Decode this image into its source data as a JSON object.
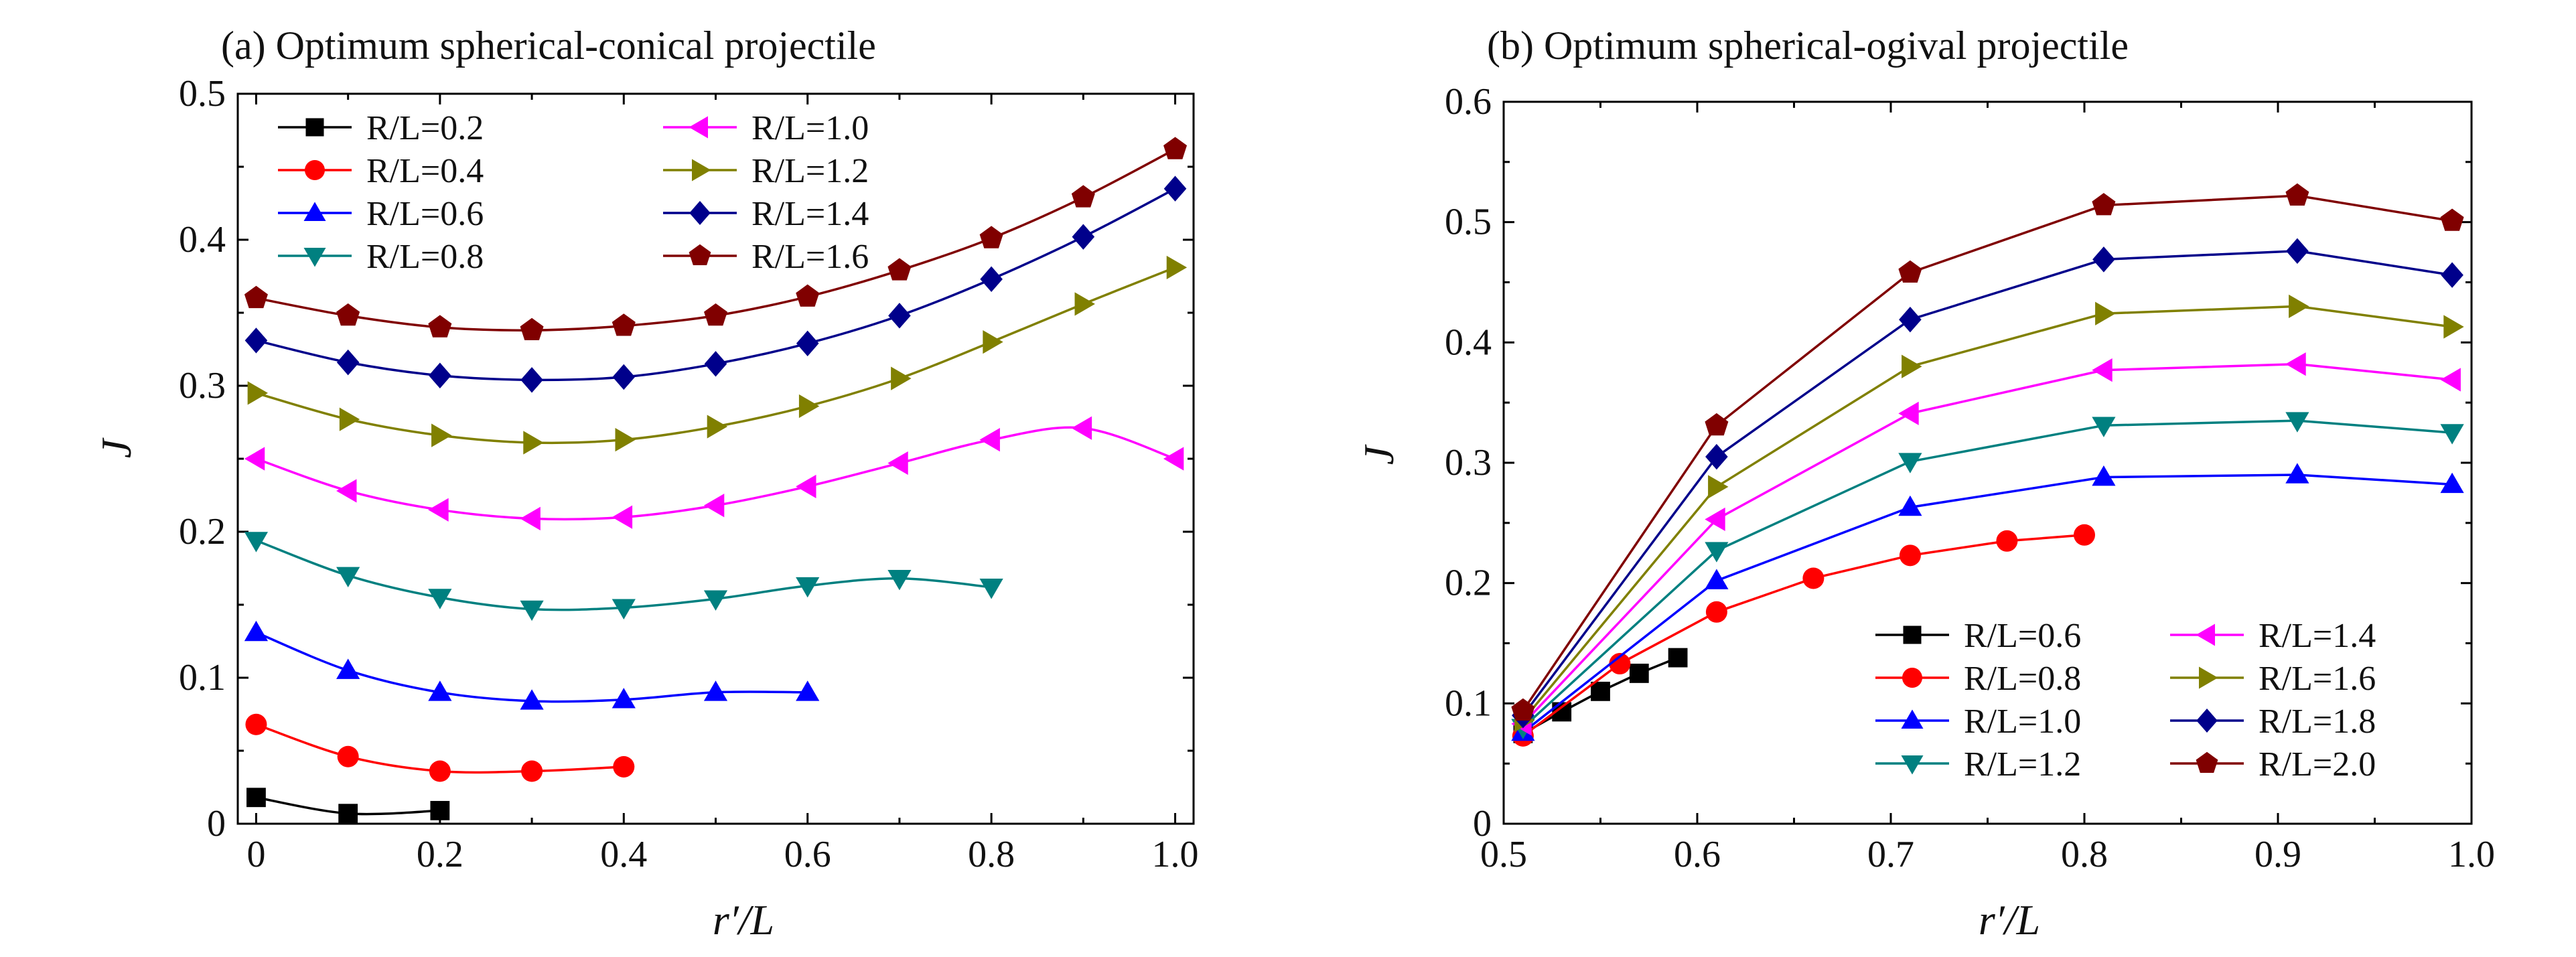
{
  "chart_data": [
    {
      "type": "line",
      "title": "(a) Optimum spherical-conical projectile",
      "xlabel": "r′/L",
      "ylabel": "J",
      "xlim": [
        -0.02,
        1.02
      ],
      "ylim": [
        0,
        0.5
      ],
      "xticks": [
        0,
        0.2,
        0.4,
        0.6,
        0.8,
        1.0
      ],
      "xtick_labels": [
        "0",
        "0.2",
        "0.4",
        "0.6",
        "0.8",
        "1.0"
      ],
      "yticks": [
        0,
        0.1,
        0.2,
        0.3,
        0.4,
        0.5
      ],
      "ytick_labels": [
        "0",
        "0.1",
        "0.2",
        "0.3",
        "0.4",
        "0.5"
      ],
      "grid": false,
      "smooth": true,
      "legend": {
        "position": "top-left",
        "columns": 2,
        "labels": [
          "R/L=0.2",
          "R/L=0.4",
          "R/L=0.6",
          "R/L=0.8",
          "R/L=1.0",
          "R/L=1.2",
          "R/L=1.4",
          "R/L=1.6"
        ]
      },
      "series": [
        {
          "name": "R/L=0.2",
          "color": "#000000",
          "marker": "square",
          "x": [
            0,
            0.1,
            0.2
          ],
          "y": [
            0.018,
            0.007,
            0.009
          ]
        },
        {
          "name": "R/L=0.4",
          "color": "#ff0000",
          "marker": "circle",
          "x": [
            0,
            0.1,
            0.2,
            0.3,
            0.4
          ],
          "y": [
            0.068,
            0.046,
            0.036,
            0.036,
            0.039
          ]
        },
        {
          "name": "R/L=0.6",
          "color": "#0000ff",
          "marker": "triangle-up",
          "x": [
            0,
            0.1,
            0.2,
            0.3,
            0.4,
            0.5,
            0.6
          ],
          "y": [
            0.131,
            0.105,
            0.09,
            0.084,
            0.085,
            0.09,
            0.09
          ]
        },
        {
          "name": "R/L=0.8",
          "color": "#008080",
          "marker": "triangle-down",
          "x": [
            0,
            0.1,
            0.2,
            0.3,
            0.4,
            0.5,
            0.6,
            0.7,
            0.8
          ],
          "y": [
            0.194,
            0.17,
            0.155,
            0.147,
            0.148,
            0.154,
            0.163,
            0.168,
            0.162
          ]
        },
        {
          "name": "R/L=1.0",
          "color": "#ff00ff",
          "marker": "triangle-left",
          "x": [
            0,
            0.1,
            0.2,
            0.3,
            0.4,
            0.5,
            0.6,
            0.7,
            0.8,
            0.9,
            1.0
          ],
          "y": [
            0.25,
            0.228,
            0.215,
            0.209,
            0.21,
            0.218,
            0.231,
            0.247,
            0.263,
            0.271,
            0.25
          ]
        },
        {
          "name": "R/L=1.2",
          "color": "#808000",
          "marker": "triangle-right",
          "x": [
            0,
            0.1,
            0.2,
            0.3,
            0.4,
            0.5,
            0.6,
            0.7,
            0.8,
            0.9,
            1.0
          ],
          "y": [
            0.295,
            0.277,
            0.266,
            0.261,
            0.263,
            0.272,
            0.286,
            0.305,
            0.33,
            0.356,
            0.381
          ]
        },
        {
          "name": "R/L=1.4",
          "color": "#00008b",
          "marker": "diamond",
          "x": [
            0,
            0.1,
            0.2,
            0.3,
            0.4,
            0.5,
            0.6,
            0.7,
            0.8,
            0.9,
            1.0
          ],
          "y": [
            0.331,
            0.316,
            0.307,
            0.304,
            0.306,
            0.315,
            0.329,
            0.348,
            0.373,
            0.402,
            0.435
          ]
        },
        {
          "name": "R/L=1.6",
          "color": "#800000",
          "marker": "pentagon",
          "x": [
            0,
            0.1,
            0.2,
            0.3,
            0.4,
            0.5,
            0.6,
            0.7,
            0.8,
            0.9,
            1.0
          ],
          "y": [
            0.36,
            0.348,
            0.34,
            0.338,
            0.341,
            0.348,
            0.361,
            0.379,
            0.401,
            0.429,
            0.462
          ]
        }
      ]
    },
    {
      "type": "line",
      "title": "(b) Optimum spherical-ogival projectile",
      "xlabel": "r′/L",
      "ylabel": "J",
      "xlim": [
        0.5,
        1.0
      ],
      "ylim": [
        0,
        0.6
      ],
      "xticks": [
        0.5,
        0.6,
        0.7,
        0.8,
        0.9,
        1.0
      ],
      "xtick_labels": [
        "0.5",
        "0.6",
        "0.7",
        "0.8",
        "0.9",
        "1.0"
      ],
      "yticks": [
        0,
        0.1,
        0.2,
        0.3,
        0.4,
        0.5,
        0.6
      ],
      "ytick_labels": [
        "0",
        "0.1",
        "0.2",
        "0.3",
        "0.4",
        "0.5",
        "0.6"
      ],
      "grid": false,
      "smooth": false,
      "legend": {
        "position": "bottom-right",
        "columns": 2,
        "labels": [
          "R/L=0.6",
          "R/L=0.8",
          "R/L=1.0",
          "R/L=1.2",
          "R/L=1.4",
          "R/L=1.6",
          "R/L=1.8",
          "R/L=2.0"
        ]
      },
      "series": [
        {
          "name": "R/L=0.6",
          "color": "#000000",
          "marker": "square",
          "x": [
            0.51,
            0.53,
            0.55,
            0.57,
            0.59
          ],
          "y": [
            0.075,
            0.093,
            0.11,
            0.125,
            0.138
          ]
        },
        {
          "name": "R/L=0.8",
          "color": "#ff0000",
          "marker": "circle",
          "x": [
            0.51,
            0.56,
            0.61,
            0.66,
            0.71,
            0.76,
            0.8
          ],
          "y": [
            0.073,
            0.133,
            0.176,
            0.204,
            0.223,
            0.235,
            0.24
          ]
        },
        {
          "name": "R/L=1.0",
          "color": "#0000ff",
          "marker": "triangle-up",
          "x": [
            0.51,
            0.61,
            0.71,
            0.81,
            0.91,
            0.99
          ],
          "y": [
            0.076,
            0.202,
            0.263,
            0.288,
            0.29,
            0.282
          ]
        },
        {
          "name": "R/L=1.2",
          "color": "#008080",
          "marker": "triangle-down",
          "x": [
            0.51,
            0.61,
            0.71,
            0.81,
            0.91,
            0.99
          ],
          "y": [
            0.08,
            0.227,
            0.301,
            0.331,
            0.335,
            0.325
          ]
        },
        {
          "name": "R/L=1.4",
          "color": "#ff00ff",
          "marker": "triangle-left",
          "x": [
            0.51,
            0.61,
            0.71,
            0.81,
            0.91,
            0.99
          ],
          "y": [
            0.083,
            0.253,
            0.341,
            0.377,
            0.382,
            0.369
          ]
        },
        {
          "name": "R/L=1.6",
          "color": "#808000",
          "marker": "triangle-right",
          "x": [
            0.51,
            0.61,
            0.71,
            0.81,
            0.91,
            0.99
          ],
          "y": [
            0.086,
            0.28,
            0.38,
            0.424,
            0.43,
            0.413
          ]
        },
        {
          "name": "R/L=1.8",
          "color": "#00008b",
          "marker": "diamond",
          "x": [
            0.51,
            0.61,
            0.71,
            0.81,
            0.91,
            0.99
          ],
          "y": [
            0.09,
            0.305,
            0.419,
            0.469,
            0.476,
            0.456
          ]
        },
        {
          "name": "R/L=2.0",
          "color": "#800000",
          "marker": "pentagon",
          "x": [
            0.51,
            0.61,
            0.71,
            0.81,
            0.91,
            0.99
          ],
          "y": [
            0.094,
            0.331,
            0.458,
            0.514,
            0.522,
            0.501
          ]
        }
      ]
    }
  ]
}
